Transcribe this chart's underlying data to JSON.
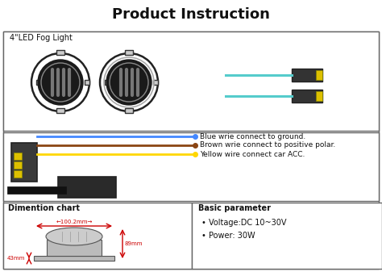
{
  "title": "Product Instruction",
  "title_fontsize": 13,
  "title_fontweight": "bold",
  "bg_color": "#ffffff",
  "section1_label": "4\"LED Fog Light",
  "wiring_lines": [
    {
      "color": "#4488ff",
      "text": "Blue wrie connect to ground."
    },
    {
      "color": "#8B4513",
      "text": "Brown wrie connect to positive polar."
    },
    {
      "color": "#FFD700",
      "text": "Yellow wire connect car ACC."
    }
  ],
  "dim_title": "Dimention chart",
  "param_title": "Basic parameter",
  "param_lines": [
    "• Voltage:DC 10~30V",
    "• Power: 30W"
  ],
  "red": "#cc0000"
}
